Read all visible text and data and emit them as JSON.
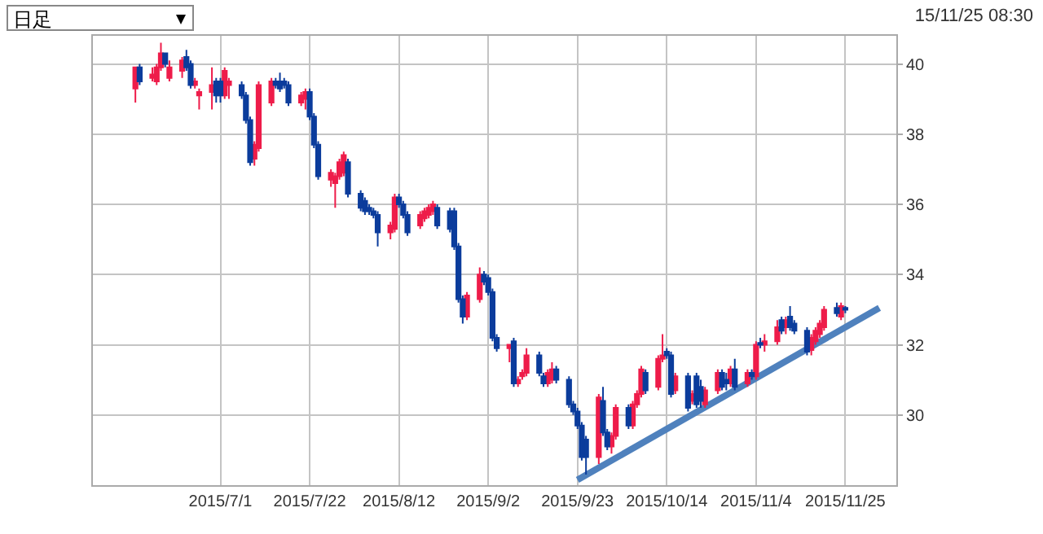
{
  "chart_data": {
    "type": "candlestick",
    "annotations": [
      "日足",
      "15/11/25 08:30"
    ],
    "colors": [
      "#ee1c4a",
      "#0b3c9c",
      "#ee1c4a",
      "#ee1c4a",
      "#ee1c4a",
      "#0b3c9c",
      "#ee1c4a",
      "#ee1c4a",
      "#0b3c9c",
      "#0b3c9c",
      "#ee1c4a",
      "#ee1c4a",
      "#ee1c4a",
      "#0b3c9c",
      "#0b3c9c",
      "#ee1c4a",
      "#ee1c4a",
      "#0b3c9c",
      "#0b3c9c",
      "#0b3c9c",
      "#ee1c4a",
      "#ee1c4a",
      "#ee1c4a",
      "#0b3c9c",
      "#0b3c9c",
      "#0b3c9c",
      "#0b3c9c",
      "#ee1c4a",
      "#ee1c4a",
      "#0b3c9c",
      "#0b3c9c",
      "#0b3c9c",
      "#ee1c4a",
      "#ee1c4a",
      "#ee1c4a",
      "#ee1c4a",
      "#0b3c9c",
      "#0b3c9c",
      "#0b3c9c",
      "#0b3c9c",
      "#0b3c9c",
      "#0b3c9c",
      "#ee1c4a",
      "#ee1c4a",
      "#0b3c9c",
      "#0b3c9c",
      "#0b3c9c",
      "#ee1c4a",
      "#ee1c4a",
      "#ee1c4a",
      "#ee1c4a",
      "#0b3c9c",
      "#0b3c9c",
      "#0b3c9c",
      "#0b3c9c",
      "#0b3c9c",
      "#ee1c4a",
      "#ee1c4a",
      "#0b3c9c",
      "#0b3c9c",
      "#0b3c9c",
      "#0b3c9c",
      "#ee1c4a",
      "#0b3c9c",
      "#ee1c4a",
      "#ee1c4a",
      "#ee1c4a",
      "#0b3c9c",
      "#0b3c9c",
      "#ee1c4a",
      "#ee1c4a",
      "#0b3c9c",
      "#0b3c9c",
      "#0b3c9c",
      "#0b3c9c",
      "#0b3c9c",
      "#0b3c9c",
      "#ee1c4a",
      "#0b3c9c",
      "#0b3c9c",
      "#ee1c4a",
      "#ee1c4a",
      "#0b3c9c",
      "#ee1c4a",
      "#ee1c4a",
      "#ee1c4a",
      "#0b3c9c",
      "#ee1c4a",
      "#ee1c4a",
      "#0b3c9c",
      "#0b3c9c",
      "#ee1c4a",
      "#0b3c9c",
      "#ee1c4a",
      "#0b3c9c",
      "#0b3c9c",
      "#ee1c4a",
      "#ee1c4a",
      "#0b3c9c",
      "#0b3c9c",
      "#ee1c4a",
      "#0b3c9c",
      "#ee1c4a",
      "#0b3c9c",
      "#ee1c4a",
      "#0b3c9c",
      "#ee1c4a",
      "#ee1c4a",
      "#0b3c9c",
      "#ee1c4a",
      "#0b3c9c",
      "#0b3c9c",
      "#0b3c9c",
      "#ee1c4a",
      "#ee1c4a",
      "#ee1c4a",
      "#ee1c4a",
      "#0b3c9c",
      "#ee1c4a",
      "#0b3c9c"
    ],
    "x": [
      "2015-06-11",
      "2015-06-12",
      "2015-06-15",
      "2015-06-16",
      "2015-06-17",
      "2015-06-18",
      "2015-06-19",
      "2015-06-22",
      "2015-06-23",
      "2015-06-24",
      "2015-06-25",
      "2015-06-26",
      "2015-06-29",
      "2015-06-30",
      "2015-07-01",
      "2015-07-02",
      "2015-07-03",
      "2015-07-06",
      "2015-07-07",
      "2015-07-08",
      "2015-07-09",
      "2015-07-10",
      "2015-07-13",
      "2015-07-14",
      "2015-07-15",
      "2015-07-16",
      "2015-07-17",
      "2015-07-20",
      "2015-07-21",
      "2015-07-22",
      "2015-07-23",
      "2015-07-24",
      "2015-07-27",
      "2015-07-28",
      "2015-07-29",
      "2015-07-30",
      "2015-07-31",
      "2015-08-03",
      "2015-08-04",
      "2015-08-05",
      "2015-08-06",
      "2015-08-07",
      "2015-08-10",
      "2015-08-11",
      "2015-08-12",
      "2015-08-13",
      "2015-08-14",
      "2015-08-17",
      "2015-08-18",
      "2015-08-19",
      "2015-08-20",
      "2015-08-21",
      "2015-08-24",
      "2015-08-25",
      "2015-08-26",
      "2015-08-27",
      "2015-08-28",
      "2015-08-31",
      "2015-09-01",
      "2015-09-02",
      "2015-09-03",
      "2015-09-04",
      "2015-09-07",
      "2015-09-08",
      "2015-09-09",
      "2015-09-10",
      "2015-09-11",
      "2015-09-14",
      "2015-09-15",
      "2015-09-16",
      "2015-09-17",
      "2015-09-18",
      "2015-09-21",
      "2015-09-22",
      "2015-09-23",
      "2015-09-24",
      "2015-09-25",
      "2015-09-28",
      "2015-09-29",
      "2015-09-30",
      "2015-10-01",
      "2015-10-02",
      "2015-10-05",
      "2015-10-06",
      "2015-10-07",
      "2015-10-08",
      "2015-10-09",
      "2015-10-12",
      "2015-10-13",
      "2015-10-14",
      "2015-10-15",
      "2015-10-16",
      "2015-10-19",
      "2015-10-20",
      "2015-10-21",
      "2015-10-22",
      "2015-10-23",
      "2015-10-26",
      "2015-10-27",
      "2015-10-28",
      "2015-10-29",
      "2015-10-30",
      "2015-11-02",
      "2015-11-03",
      "2015-11-04",
      "2015-11-05",
      "2015-11-06",
      "2015-11-09",
      "2015-11-10",
      "2015-11-11",
      "2015-11-12",
      "2015-11-13",
      "2015-11-16",
      "2015-11-17",
      "2015-11-18",
      "2015-11-19",
      "2015-11-20",
      "2015-11-23",
      "2015-11-24",
      "2015-11-25"
    ],
    "ohlc": [
      [
        39.3,
        39.9,
        38.9,
        39.9
      ],
      [
        39.9,
        40.0,
        39.4,
        39.5
      ],
      [
        39.6,
        39.9,
        39.5,
        39.7
      ],
      [
        39.5,
        40.0,
        39.4,
        39.9
      ],
      [
        39.9,
        40.6,
        39.8,
        40.3
      ],
      [
        40.3,
        40.3,
        39.9,
        40.0
      ],
      [
        39.6,
        40.1,
        39.5,
        39.9
      ],
      [
        39.8,
        40.2,
        39.6,
        40.1
      ],
      [
        40.2,
        40.4,
        39.8,
        39.9
      ],
      [
        40.0,
        40.1,
        39.3,
        39.4
      ],
      [
        39.4,
        39.6,
        39.3,
        39.5
      ],
      [
        39.1,
        39.3,
        38.7,
        39.2
      ],
      [
        39.2,
        39.9,
        38.7,
        39.4
      ],
      [
        39.5,
        39.6,
        38.9,
        39.1
      ],
      [
        39.5,
        39.6,
        38.9,
        39.1
      ],
      [
        39.1,
        39.9,
        39.0,
        39.8
      ],
      [
        39.4,
        39.6,
        39.0,
        39.5
      ],
      [
        39.4,
        39.5,
        39.0,
        39.1
      ],
      [
        39.1,
        39.2,
        38.3,
        38.4
      ],
      [
        38.4,
        38.5,
        37.1,
        37.2
      ],
      [
        37.3,
        37.8,
        37.1,
        37.7
      ],
      [
        37.6,
        39.5,
        37.5,
        39.4
      ],
      [
        38.9,
        39.6,
        38.8,
        39.5
      ],
      [
        39.5,
        39.6,
        39.3,
        39.4
      ],
      [
        39.5,
        39.75,
        39.2,
        39.3
      ],
      [
        39.5,
        39.6,
        39.3,
        39.4
      ],
      [
        39.4,
        39.5,
        38.8,
        38.9
      ],
      [
        38.9,
        39.2,
        38.8,
        39.1
      ],
      [
        39.0,
        39.3,
        38.7,
        39.2
      ],
      [
        39.2,
        39.3,
        38.4,
        38.5
      ],
      [
        38.5,
        38.6,
        37.6,
        37.7
      ],
      [
        37.7,
        37.8,
        36.7,
        36.8
      ],
      [
        36.7,
        37.0,
        36.5,
        36.9
      ],
      [
        36.6,
        36.9,
        35.9,
        36.8
      ],
      [
        36.8,
        37.3,
        36.7,
        37.2
      ],
      [
        36.9,
        37.5,
        36.8,
        37.4
      ],
      [
        37.2,
        37.3,
        36.2,
        36.3
      ],
      [
        36.3,
        36.4,
        35.8,
        35.9
      ],
      [
        36.1,
        36.2,
        35.7,
        35.8
      ],
      [
        35.9,
        36.0,
        35.7,
        35.8
      ],
      [
        35.8,
        35.9,
        35.6,
        35.7
      ],
      [
        35.7,
        35.8,
        34.8,
        35.2
      ],
      [
        35.2,
        35.5,
        35.0,
        35.4
      ],
      [
        35.3,
        36.3,
        35.2,
        36.2
      ],
      [
        36.2,
        36.3,
        35.9,
        36.0
      ],
      [
        36.0,
        36.1,
        35.6,
        35.7
      ],
      [
        35.7,
        35.8,
        35.1,
        35.2
      ],
      [
        35.4,
        35.8,
        35.3,
        35.7
      ],
      [
        35.6,
        35.9,
        35.5,
        35.8
      ],
      [
        35.7,
        36.0,
        35.6,
        35.9
      ],
      [
        35.8,
        36.1,
        35.7,
        36.0
      ],
      [
        35.9,
        36.0,
        35.3,
        35.4
      ],
      [
        35.8,
        35.9,
        35.2,
        35.3
      ],
      [
        35.8,
        35.9,
        34.7,
        34.8
      ],
      [
        34.8,
        34.9,
        33.2,
        33.3
      ],
      [
        33.3,
        33.4,
        32.6,
        32.8
      ],
      [
        32.8,
        33.5,
        32.7,
        33.4
      ],
      [
        33.3,
        34.2,
        33.2,
        34.0
      ],
      [
        34.0,
        34.1,
        33.7,
        33.8
      ],
      [
        33.9,
        34.0,
        33.4,
        33.5
      ],
      [
        33.5,
        33.6,
        32.1,
        32.2
      ],
      [
        32.2,
        32.3,
        31.8,
        31.9
      ],
      [
        31.9,
        32.0,
        31.5,
        32.0
      ],
      [
        32.1,
        32.2,
        30.8,
        30.9
      ],
      [
        30.9,
        31.1,
        30.8,
        31.0
      ],
      [
        31.1,
        31.3,
        31.0,
        31.2
      ],
      [
        31.2,
        31.9,
        31.1,
        31.7
      ],
      [
        31.7,
        31.8,
        31.1,
        31.2
      ],
      [
        31.1,
        31.2,
        30.8,
        30.9
      ],
      [
        30.9,
        31.3,
        30.8,
        31.2
      ],
      [
        31.0,
        31.5,
        30.9,
        31.3
      ],
      [
        31.3,
        31.4,
        30.9,
        31.0
      ],
      [
        31.0,
        31.1,
        30.2,
        30.3
      ],
      [
        30.3,
        30.4,
        30.0,
        30.1
      ],
      [
        30.1,
        30.2,
        29.6,
        29.7
      ],
      [
        29.7,
        29.8,
        28.7,
        28.8
      ],
      [
        29.3,
        29.4,
        28.3,
        28.8
      ],
      [
        28.8,
        30.6,
        28.6,
        30.5
      ],
      [
        30.4,
        30.8,
        29.4,
        29.5
      ],
      [
        29.5,
        29.6,
        29.0,
        29.1
      ],
      [
        29.1,
        29.5,
        28.9,
        29.4
      ],
      [
        29.4,
        30.3,
        29.3,
        30.2
      ],
      [
        30.2,
        30.3,
        29.6,
        29.7
      ],
      [
        29.7,
        30.4,
        29.6,
        30.3
      ],
      [
        30.3,
        30.7,
        30.2,
        30.6
      ],
      [
        30.6,
        31.4,
        30.5,
        31.3
      ],
      [
        31.2,
        31.3,
        30.6,
        30.7
      ],
      [
        30.8,
        31.7,
        30.7,
        31.6
      ],
      [
        31.6,
        32.3,
        31.5,
        31.7
      ],
      [
        31.8,
        31.9,
        31.6,
        31.7
      ],
      [
        31.7,
        31.8,
        30.5,
        30.6
      ],
      [
        30.7,
        31.2,
        30.6,
        31.1
      ],
      [
        31.1,
        31.2,
        30.1,
        30.2
      ],
      [
        30.4,
        30.7,
        30.3,
        30.6
      ],
      [
        31.1,
        31.2,
        30.2,
        30.3
      ],
      [
        30.8,
        31.0,
        30.2,
        30.4
      ],
      [
        30.3,
        30.8,
        30.2,
        30.7
      ],
      [
        30.7,
        31.3,
        30.6,
        31.2
      ],
      [
        31.2,
        31.3,
        30.7,
        30.8
      ],
      [
        31.0,
        31.2,
        30.7,
        30.9
      ],
      [
        30.9,
        31.4,
        30.8,
        31.3
      ],
      [
        31.3,
        31.6,
        30.7,
        30.8
      ],
      [
        30.9,
        31.3,
        30.8,
        31.2
      ],
      [
        31.2,
        31.3,
        31.0,
        31.1
      ],
      [
        31.1,
        32.1,
        31.0,
        32.0
      ],
      [
        32.05,
        32.2,
        31.9,
        32.0
      ],
      [
        32.0,
        32.3,
        31.8,
        32.1
      ],
      [
        32.1,
        32.7,
        32.0,
        32.5
      ],
      [
        32.7,
        32.8,
        32.3,
        32.4
      ],
      [
        32.5,
        32.8,
        32.3,
        32.7
      ],
      [
        32.8,
        33.1,
        32.4,
        32.5
      ],
      [
        32.6,
        32.7,
        32.3,
        32.4
      ],
      [
        32.4,
        32.5,
        31.7,
        31.8
      ],
      [
        31.85,
        32.3,
        31.7,
        32.2
      ],
      [
        32.1,
        32.5,
        32.0,
        32.4
      ],
      [
        32.3,
        32.7,
        32.2,
        32.6
      ],
      [
        32.5,
        33.1,
        32.4,
        33.0
      ],
      [
        33.05,
        33.2,
        32.8,
        32.9
      ],
      [
        32.8,
        33.2,
        32.7,
        33.1
      ],
      [
        33.05,
        33.1,
        32.9,
        33.0
      ]
    ],
    "series": [
      {
        "type": "line",
        "color": "#4f81bd",
        "x": [
          "2015-09-23",
          "2015-12-03"
        ],
        "values": [
          28.15,
          33.05
        ]
      }
    ],
    "xlim": [
      "2015-06-01",
      "2015-12-07"
    ],
    "xticks": [
      {
        "value": "2015-07-01",
        "label": "2015/7/1"
      },
      {
        "value": "2015-07-22",
        "label": "2015/7/22"
      },
      {
        "value": "2015-08-12",
        "label": "2015/8/12"
      },
      {
        "value": "2015-09-02",
        "label": "2015/9/2"
      },
      {
        "value": "2015-09-23",
        "label": "2015/9/23"
      },
      {
        "value": "2015-10-14",
        "label": "2015/10/14"
      },
      {
        "value": "2015-11-04",
        "label": "2015/11/4"
      },
      {
        "value": "2015-11-25",
        "label": "2015/11/25"
      }
    ],
    "ylim": [
      28,
      40.8
    ],
    "yticks": [
      30,
      32,
      34,
      36,
      38,
      40
    ],
    "grid": true
  }
}
